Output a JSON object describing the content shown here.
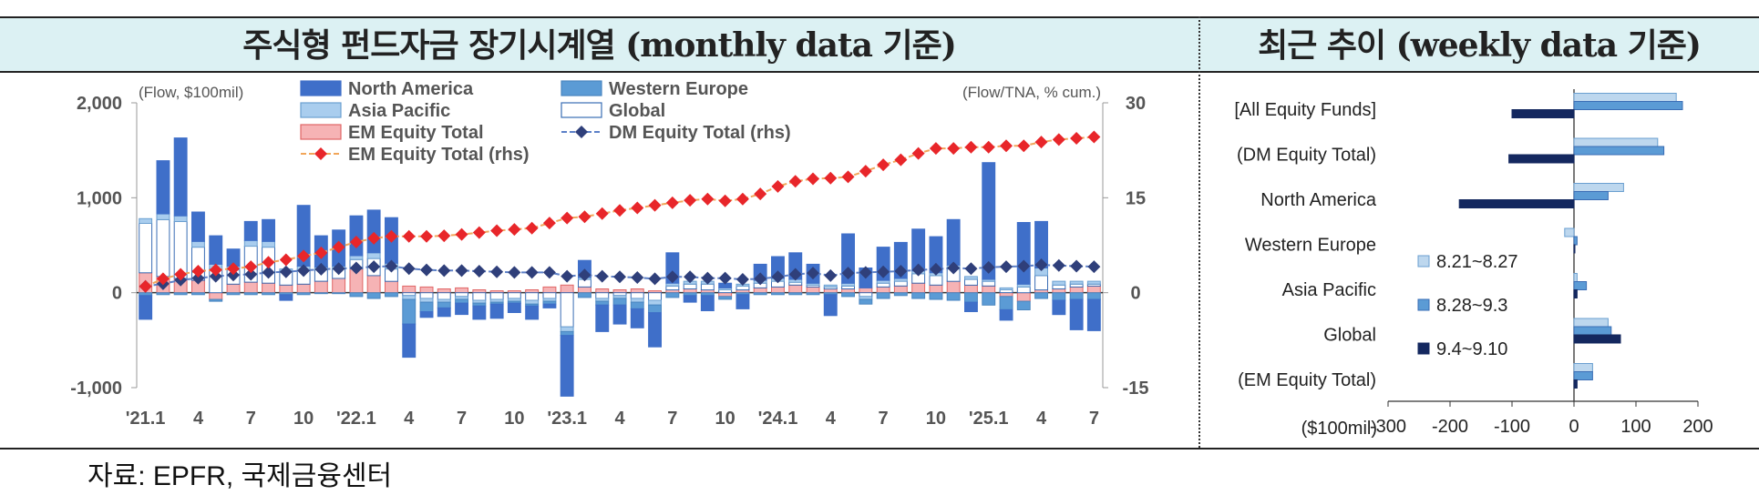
{
  "panel_titles": {
    "left": "주식형 펀드자금 장기시계열 (monthly data 기준)",
    "right": "최근 추이 (weekly data 기준)"
  },
  "source_note": "자료: EPFR,  국제금융센터",
  "colors": {
    "north_america": "#3f6fc9",
    "western_europe": "#5b9bd5",
    "asia_pacific": "#a9cdee",
    "global": "#ffffff",
    "em_equity_total": "#f6b3b5",
    "em_line": "#e8262a",
    "dm_line": "#2f3f7a",
    "week1": "#bdd7ee",
    "week2": "#5b9bd5",
    "week3": "#14285f",
    "header_bg": "#dcf1f3"
  },
  "chart_data": [
    {
      "type": "bar",
      "stacked": true,
      "title": "주식형 펀드자금 장기시계열 (monthly data 기준)",
      "left_axis_unit": "(Flow, $100mil)",
      "right_axis_unit": "(Flow/TNA, % cum.)",
      "ylim": [
        -1000,
        2000
      ],
      "yticks": [
        "2,000",
        "1,000",
        "0",
        "-1,000"
      ],
      "ylim_right": [
        -15,
        30
      ],
      "yticks_right": [
        "30",
        "15",
        "0",
        "-15"
      ],
      "x_tick_labels": [
        "'21.1",
        "4",
        "7",
        "10",
        "'22.1",
        "4",
        "7",
        "10",
        "'23.1",
        "4",
        "7",
        "10",
        "'24.1",
        "4",
        "7",
        "10",
        "'25.1",
        "4",
        "7"
      ],
      "months": [
        "2021-01",
        "2021-02",
        "2021-03",
        "2021-04",
        "2021-05",
        "2021-06",
        "2021-07",
        "2021-08",
        "2021-09",
        "2021-10",
        "2021-11",
        "2021-12",
        "2022-01",
        "2022-02",
        "2022-03",
        "2022-04",
        "2022-05",
        "2022-06",
        "2022-07",
        "2022-08",
        "2022-09",
        "2022-10",
        "2022-11",
        "2022-12",
        "2023-01",
        "2023-02",
        "2023-03",
        "2023-04",
        "2023-05",
        "2023-06",
        "2023-07",
        "2023-08",
        "2023-09",
        "2023-10",
        "2023-11",
        "2023-12",
        "2024-01",
        "2024-02",
        "2024-03",
        "2024-04",
        "2024-05",
        "2024-06",
        "2024-07",
        "2024-08",
        "2024-09",
        "2024-10",
        "2024-11",
        "2024-12",
        "2025-01",
        "2025-02",
        "2025-03",
        "2025-04",
        "2025-05",
        "2025-06",
        "2025-07"
      ],
      "legend": [
        {
          "key": "north_america",
          "label": "North America",
          "kind": "bar"
        },
        {
          "key": "western_europe",
          "label": "Western Europe",
          "kind": "bar"
        },
        {
          "key": "asia_pacific",
          "label": "Asia Pacific",
          "kind": "bar"
        },
        {
          "key": "global",
          "label": "Global",
          "kind": "bar"
        },
        {
          "key": "em_equity_total",
          "label": "EM Equity Total",
          "kind": "bar"
        },
        {
          "key": "dm_line",
          "label": "DM Equity Total (rhs)",
          "kind": "line"
        },
        {
          "key": "em_line",
          "label": "EM Equity Total (rhs)",
          "kind": "line"
        }
      ],
      "series": [
        {
          "name": "EM Equity Total",
          "values": [
            210,
            170,
            150,
            130,
            -70,
            90,
            110,
            100,
            80,
            90,
            120,
            150,
            250,
            180,
            120,
            70,
            60,
            40,
            50,
            30,
            20,
            20,
            30,
            60,
            80,
            60,
            40,
            30,
            40,
            20,
            30,
            40,
            30,
            -40,
            30,
            50,
            60,
            80,
            60,
            40,
            40,
            50,
            60,
            70,
            100,
            80,
            120,
            80,
            70,
            -40,
            -90,
            30,
            40,
            60,
            70
          ]
        },
        {
          "name": "Global",
          "values": [
            520,
            600,
            600,
            350,
            250,
            150,
            380,
            380,
            150,
            150,
            120,
            100,
            100,
            180,
            130,
            -30,
            -60,
            -70,
            -40,
            -80,
            -70,
            -60,
            -80,
            -60,
            -360,
            80,
            -60,
            -30,
            -60,
            -80,
            40,
            50,
            60,
            30,
            40,
            50,
            60,
            30,
            20,
            20,
            30,
            -40,
            40,
            50,
            100,
            100,
            130,
            60,
            50,
            30,
            60,
            150,
            40,
            30,
            20
          ]
        },
        {
          "name": "Asia Pacific",
          "values": [
            50,
            60,
            60,
            60,
            50,
            40,
            60,
            60,
            20,
            40,
            30,
            30,
            40,
            60,
            60,
            -40,
            -40,
            -30,
            -30,
            -30,
            -30,
            -30,
            -40,
            -30,
            -50,
            20,
            -30,
            -30,
            -40,
            -50,
            30,
            30,
            30,
            20,
            20,
            30,
            30,
            30,
            20,
            20,
            30,
            -30,
            30,
            30,
            30,
            30,
            40,
            30,
            20,
            20,
            30,
            80,
            40,
            30,
            30
          ]
        },
        {
          "name": "Western Europe",
          "values": [
            -30,
            -20,
            -20,
            -20,
            -20,
            -20,
            -20,
            -20,
            -20,
            -20,
            -10,
            -10,
            -40,
            -60,
            -40,
            -260,
            -100,
            -60,
            -40,
            -30,
            -20,
            -20,
            -20,
            -30,
            -40,
            -50,
            -40,
            -70,
            -70,
            -80,
            -50,
            -30,
            -30,
            -30,
            -20,
            -20,
            -20,
            -20,
            -20,
            -20,
            -40,
            -50,
            -60,
            -30,
            -60,
            -70,
            -80,
            -100,
            -130,
            -140,
            -90,
            -60,
            -80,
            -70,
            -70
          ]
        },
        {
          "name": "North America",
          "values": [
            -250,
            560,
            820,
            310,
            300,
            180,
            200,
            230,
            -60,
            640,
            330,
            380,
            420,
            450,
            480,
            -350,
            -60,
            -90,
            -120,
            -140,
            -150,
            -100,
            -140,
            -40,
            -640,
            180,
            -280,
            -200,
            -200,
            -360,
            320,
            -70,
            -160,
            50,
            -150,
            170,
            230,
            280,
            200,
            -220,
            520,
            210,
            350,
            380,
            440,
            380,
            480,
            -100,
            1230,
            -110,
            650,
            490,
            -150,
            -320,
            -330
          ]
        }
      ],
      "dm_equity_total_rhs": [
        1.0,
        1.4,
        2.0,
        2.3,
        2.6,
        2.8,
        2.9,
        3.2,
        3.3,
        3.5,
        3.7,
        3.8,
        3.9,
        4.1,
        4.2,
        3.8,
        3.6,
        3.5,
        3.5,
        3.4,
        3.3,
        3.2,
        3.2,
        3.2,
        2.6,
        2.8,
        2.6,
        2.5,
        2.4,
        2.2,
        2.5,
        2.5,
        2.3,
        2.3,
        2.1,
        2.2,
        2.5,
        2.9,
        3.1,
        2.7,
        3.1,
        3.2,
        3.3,
        3.4,
        3.6,
        3.7,
        3.9,
        3.8,
        4.0,
        4.1,
        4.2,
        4.4,
        4.3,
        4.2,
        4.1
      ],
      "em_equity_total_rhs": [
        1.0,
        2.2,
        2.9,
        3.4,
        3.6,
        3.8,
        4.1,
        4.8,
        5.2,
        5.8,
        6.3,
        7.2,
        8.0,
        8.6,
        8.9,
        8.9,
        8.9,
        9.0,
        9.2,
        9.5,
        9.8,
        10.0,
        10.2,
        11.0,
        11.8,
        12.0,
        12.5,
        13.0,
        13.4,
        13.8,
        14.2,
        14.6,
        14.8,
        14.5,
        14.8,
        15.6,
        16.8,
        17.6,
        18.0,
        18.1,
        18.3,
        19.2,
        20.2,
        21.0,
        22.0,
        22.8,
        22.8,
        23.0,
        23.0,
        23.2,
        23.2,
        23.8,
        24.2,
        24.4,
        24.6
      ]
    },
    {
      "type": "bar",
      "orientation": "horizontal",
      "title": "최근 추이 (weekly data 기준)",
      "xlabel": "($100mil)",
      "xlim": [
        -300,
        200
      ],
      "xticks": [
        "-300",
        "-200",
        "-100",
        "0",
        "100",
        "200"
      ],
      "categories": [
        "[All Equity Funds]",
        "(DM Equity Total)",
        "North America",
        "Western Europe",
        "Asia Pacific",
        "Global",
        "(EM Equity Total)"
      ],
      "series": [
        {
          "name": "8.21~8.27",
          "values": [
            165,
            135,
            80,
            -15,
            5,
            55,
            30
          ]
        },
        {
          "name": "8.28~9.3",
          "values": [
            175,
            145,
            55,
            5,
            20,
            60,
            30
          ]
        },
        {
          "name": "9.4~9.10",
          "values": [
            -100,
            -105,
            -185,
            0,
            5,
            75,
            5
          ]
        }
      ]
    }
  ]
}
